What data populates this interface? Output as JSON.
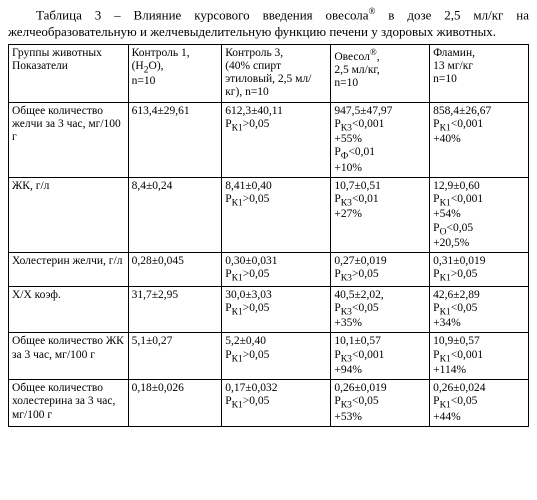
{
  "caption": "Таблица 3 – Влияние курсового введения овесола® в дозе 2,5 мл/кг на желчеобразовательную и желчевыделительную функцию печени у здоровых животных.",
  "header": {
    "row_label": "Группы животных\nПоказатели",
    "cols": [
      "Контроль 1,\n(H₂O),\nn=10",
      "Контроль 3,\n(40% спирт этиловый, 2,5 мл/кг), n=10",
      "Овесол®,\n2,5 мл/кг,\nn=10",
      "Фламин,\n13 мг/кг\nn=10"
    ]
  },
  "rows": [
    {
      "label": "Общее количество желчи за 3 час, мг/100 г",
      "c": [
        "613,4±29,61",
        "612,3±40,11\nPК1>0,05",
        "947,5±47,97\nPК3<0,001\n+55%\nPФ<0,01\n+10%",
        "858,4±26,67\nPК1<0,001\n+40%"
      ]
    },
    {
      "label": "ЖК, г/л",
      "c": [
        "8,4±0,24",
        "8,41±0,40\nPК1>0,05",
        "10,7±0,51\nPК3<0,01\n+27%",
        "12,9±0,60\nPК1<0,001\n+54%\nPО<0,05\n+20,5%"
      ]
    },
    {
      "label": "Холестерин желчи, г/л",
      "c": [
        "0,28±0,045",
        "0,30±0,031\nPК1>0,05",
        "0,27±0,019\nPК3>0,05",
        "0,31±0,019\nPК1>0,05"
      ]
    },
    {
      "label": "Х/Х коэф.",
      "c": [
        "31,7±2,95",
        "30,0±3,03\nPК1>0,05",
        "40,5±2,02,\nPК3<0,05\n+35%",
        "42,6±2,89\nPК1<0,05\n+34%"
      ]
    },
    {
      "label": "Общее количество ЖК за 3 час, мг/100 г",
      "c": [
        "5,1±0,27",
        "5,2±0,40\nPК1>0,05",
        "10,1±0,57\nPК3<0,001\n+94%",
        "10,9±0,57\nPК1<0,001\n+114%"
      ]
    },
    {
      "label": "Общее количество холестерина за 3 час, мг/100 г",
      "c": [
        "0,18±0,026",
        "0,17±0,032\nPК1>0,05",
        "0,26±0,019\nPК3<0,05\n+53%",
        "0,26±0,024\nPК1<0,05\n+44%"
      ]
    }
  ]
}
